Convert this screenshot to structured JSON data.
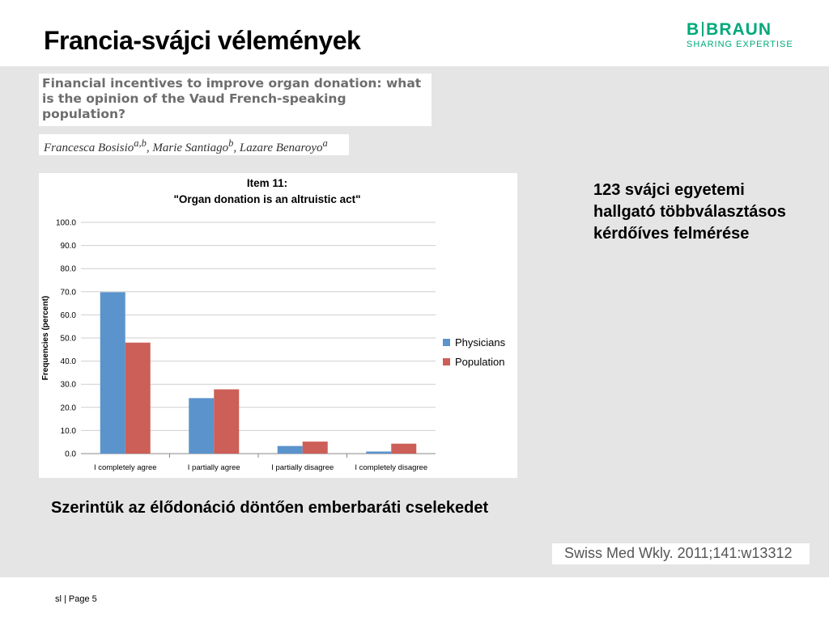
{
  "slide": {
    "title": "Francia-svájci vélemények",
    "footer": "sl | Page 5"
  },
  "logo": {
    "left": "B",
    "right": "BRAUN",
    "tagline": "SHARING EXPERTISE",
    "color": "#00a97a"
  },
  "paper": {
    "title": "Financial incentives to improve organ donation: what is the opinion of the Vaud French-speaking population?",
    "authors": [
      {
        "name": "Francesca Bosisio",
        "sup": "a,b",
        "sep": ", "
      },
      {
        "name": "Marie Santiago",
        "sup": "b",
        "sep": ", "
      },
      {
        "name": "Lazare Benaroyo",
        "sup": "a",
        "sep": ""
      }
    ]
  },
  "note": "123 svájci egyetemi hallgató többválasztásos kérdőíves felmérése",
  "conclusion": "Szerintük az élődonáció döntően emberbaráti cselekedet",
  "citation": "Swiss Med Wkly. 2011;141:w13312",
  "chart_data": {
    "type": "bar",
    "title": "Item 11:",
    "subtitle": "\"Organ donation is an altruistic act\"",
    "xlabel": "",
    "ylabel": "Frequencies (percent)",
    "categories": [
      "I completely agree",
      "I partially agree",
      "I partially disagree",
      "I completely disagree"
    ],
    "series": [
      {
        "name": "Physicians",
        "color": "#5b93cc",
        "values": [
          69.8,
          24.0,
          3.3,
          0.9
        ]
      },
      {
        "name": "Population",
        "color": "#cc5f57",
        "values": [
          48.0,
          27.8,
          5.2,
          4.3
        ]
      }
    ],
    "ylim": [
      0,
      100
    ],
    "yticks": [
      "0.0",
      "10.0",
      "20.0",
      "30.0",
      "40.0",
      "50.0",
      "60.0",
      "70.0",
      "80.0",
      "90.0",
      "100.0"
    ],
    "grid": true,
    "legend": "right"
  }
}
